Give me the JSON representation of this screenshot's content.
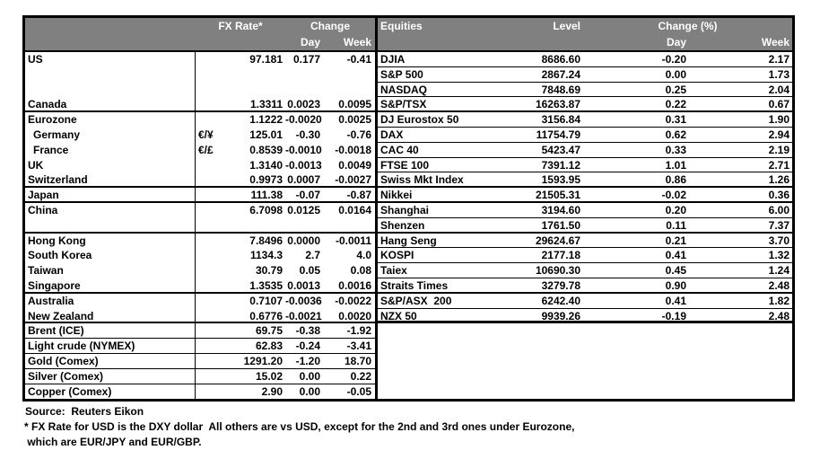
{
  "colors": {
    "header_bg": "#808080",
    "header_text": "#FFFFFF",
    "border": "#000000",
    "text": "#000000"
  },
  "fx_section": {
    "header": {
      "fx_rate": "FX Rate*",
      "change": "Change",
      "day": "Day",
      "week": "Week"
    },
    "rows": [
      {
        "name": "US",
        "sym": "",
        "fx": "97.181",
        "day": "0.177",
        "week": "-0.41",
        "indent": false,
        "sep": "none"
      },
      {
        "name": "",
        "sym": "",
        "fx": "",
        "day": "",
        "week": "",
        "indent": false,
        "sep": "none"
      },
      {
        "name": "",
        "sym": "",
        "fx": "",
        "day": "",
        "week": "",
        "indent": false,
        "sep": "none"
      },
      {
        "name": "Canada",
        "sym": "",
        "fx": "1.3311",
        "day": "0.0023",
        "week": "0.0095",
        "indent": false,
        "sep": "group"
      },
      {
        "name": "Eurozone",
        "sym": "",
        "fx": "1.1222",
        "day": "-0.0020",
        "week": "0.0025",
        "indent": false,
        "sep": "none"
      },
      {
        "name": "Germany",
        "sym": "€/¥",
        "fx": "125.01",
        "day": "-0.30",
        "week": "-0.76",
        "indent": true,
        "sep": "none"
      },
      {
        "name": "France",
        "sym": "€/£",
        "fx": "0.8539",
        "day": "-0.0010",
        "week": "-0.0018",
        "indent": true,
        "sep": "none"
      },
      {
        "name": "UK",
        "sym": "",
        "fx": "1.3140",
        "day": "-0.0013",
        "week": "0.0049",
        "indent": false,
        "sep": "none"
      },
      {
        "name": "Switzerland",
        "sym": "",
        "fx": "0.9973",
        "day": "0.0007",
        "week": "-0.0027",
        "indent": false,
        "sep": "group"
      },
      {
        "name": "Japan",
        "sym": "",
        "fx": "111.38",
        "day": "-0.07",
        "week": "-0.87",
        "indent": false,
        "sep": "group"
      },
      {
        "name": "China",
        "sym": "",
        "fx": "6.7098",
        "day": "0.0125",
        "week": "0.0164",
        "indent": false,
        "sep": "none"
      },
      {
        "name": "",
        "sym": "",
        "fx": "",
        "day": "",
        "week": "",
        "indent": false,
        "sep": "group"
      },
      {
        "name": "Hong Kong",
        "sym": "",
        "fx": "7.8496",
        "day": "0.0000",
        "week": "-0.0011",
        "indent": false,
        "sep": "none"
      },
      {
        "name": "South Korea",
        "sym": "",
        "fx": "1134.3",
        "day": "2.7",
        "week": "4.0",
        "indent": false,
        "sep": "none"
      },
      {
        "name": "Taiwan",
        "sym": "",
        "fx": "30.79",
        "day": "0.05",
        "week": "0.08",
        "indent": false,
        "sep": "none"
      },
      {
        "name": "Singapore",
        "sym": "",
        "fx": "1.3535",
        "day": "0.0013",
        "week": "0.0016",
        "indent": false,
        "sep": "group"
      },
      {
        "name": "Australia",
        "sym": "",
        "fx": "0.7107",
        "day": "-0.0036",
        "week": "-0.0022",
        "indent": false,
        "sep": "none"
      },
      {
        "name": "New Zealand",
        "sym": "",
        "fx": "0.6776",
        "day": "-0.0021",
        "week": "0.0020",
        "indent": false,
        "sep": "group"
      },
      {
        "name": "Brent (ICE)",
        "sym": "",
        "fx": "69.75",
        "day": "-0.38",
        "week": "-1.92",
        "indent": false,
        "sep": "row"
      },
      {
        "name": "Light crude (NYMEX)",
        "sym": "",
        "fx": "62.83",
        "day": "-0.24",
        "week": "-3.41",
        "indent": false,
        "sep": "row"
      },
      {
        "name": "Gold (Comex)",
        "sym": "",
        "fx": "1291.20",
        "day": "-1.20",
        "week": "18.70",
        "indent": false,
        "sep": "row"
      },
      {
        "name": "Silver (Comex)",
        "sym": "",
        "fx": "15.02",
        "day": "0.00",
        "week": "0.22",
        "indent": false,
        "sep": "row"
      },
      {
        "name": "Copper (Comex)",
        "sym": "",
        "fx": "2.90",
        "day": "0.00",
        "week": "-0.05",
        "indent": false,
        "sep": "none"
      }
    ]
  },
  "equities_section": {
    "header": {
      "equities": "Equities",
      "level": "Level",
      "change_pct": "Change (%)",
      "day": "Day",
      "week": "Week"
    },
    "rows": [
      {
        "name": "DJIA",
        "level": "8686.60",
        "day": "-0.20",
        "week": "2.17",
        "sep": "row"
      },
      {
        "name": "S&P 500",
        "level": "2867.24",
        "day": "0.00",
        "week": "1.73",
        "sep": "row"
      },
      {
        "name": "NASDAQ",
        "level": "7848.69",
        "day": "0.25",
        "week": "2.04",
        "sep": "row"
      },
      {
        "name": "S&P/TSX",
        "level": "16263.87",
        "day": "0.22",
        "week": "0.67",
        "sep": "group"
      },
      {
        "name": "DJ Eurostox 50",
        "level": "3156.84",
        "day": "0.31",
        "week": "1.90",
        "sep": "row"
      },
      {
        "name": "DAX",
        "level": "11754.79",
        "day": "0.62",
        "week": "2.94",
        "sep": "row"
      },
      {
        "name": "CAC 40",
        "level": "5423.47",
        "day": "0.33",
        "week": "2.19",
        "sep": "row"
      },
      {
        "name": "FTSE 100",
        "level": "7391.12",
        "day": "1.01",
        "week": "2.71",
        "sep": "row"
      },
      {
        "name": "Swiss Mkt Index",
        "level": "1593.95",
        "day": "0.86",
        "week": "1.26",
        "sep": "group"
      },
      {
        "name": "Nikkei",
        "level": "21505.31",
        "day": "-0.02",
        "week": "0.36",
        "sep": "group"
      },
      {
        "name": "Shanghai",
        "level": "3194.60",
        "day": "0.20",
        "week": "6.00",
        "sep": "row"
      },
      {
        "name": "Shenzen",
        "level": "1761.50",
        "day": "0.11",
        "week": "7.37",
        "sep": "group"
      },
      {
        "name": "Hang Seng",
        "level": "29624.67",
        "day": "0.21",
        "week": "3.70",
        "sep": "row"
      },
      {
        "name": "KOSPI",
        "level": "2177.18",
        "day": "0.41",
        "week": "1.32",
        "sep": "row"
      },
      {
        "name": "Taiex",
        "level": "10690.30",
        "day": "0.45",
        "week": "1.24",
        "sep": "row"
      },
      {
        "name": "Straits Times",
        "level": "3279.78",
        "day": "0.90",
        "week": "2.48",
        "sep": "group"
      },
      {
        "name": "S&P/ASX  200",
        "level": "6242.40",
        "day": "0.41",
        "week": "1.82",
        "sep": "row"
      },
      {
        "name": "NZX 50",
        "level": "9939.26",
        "day": "-0.19",
        "week": "2.48",
        "sep": "thick"
      }
    ]
  },
  "footer": {
    "source": "Source:  Reuters Eikon",
    "footnote_line1": "* FX Rate for USD is the DXY dollar  All others are vs USD, except for the 2nd and 3rd ones under Eurozone,",
    "footnote_line2": " which are EUR/JPY and EUR/GBP."
  }
}
